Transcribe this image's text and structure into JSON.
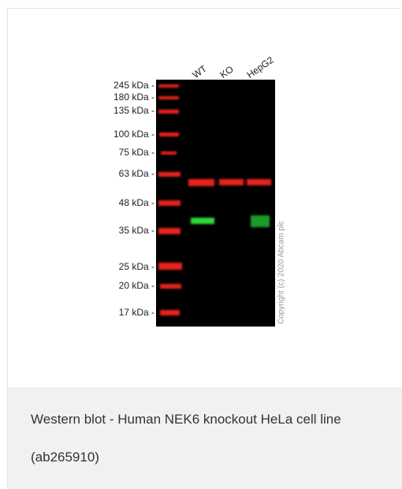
{
  "image": {
    "lane_labels": [
      "WT",
      "KO",
      "HepG2"
    ],
    "markers": [
      "245 kDa -",
      "180 kDa -",
      "135 kDa -",
      "100 kDa -",
      "75 kDa -",
      "63 kDa -",
      "48 kDa -",
      "35 kDa -",
      "25 kDa -",
      "20 kDa -",
      "17 kDa -"
    ],
    "copyright": "Copyright (c) 2020 Abcam plc"
  },
  "caption": {
    "lines": [
      "Western blot - Human NEK6 knockout HeLa cell line",
      "(ab265910)"
    ]
  }
}
